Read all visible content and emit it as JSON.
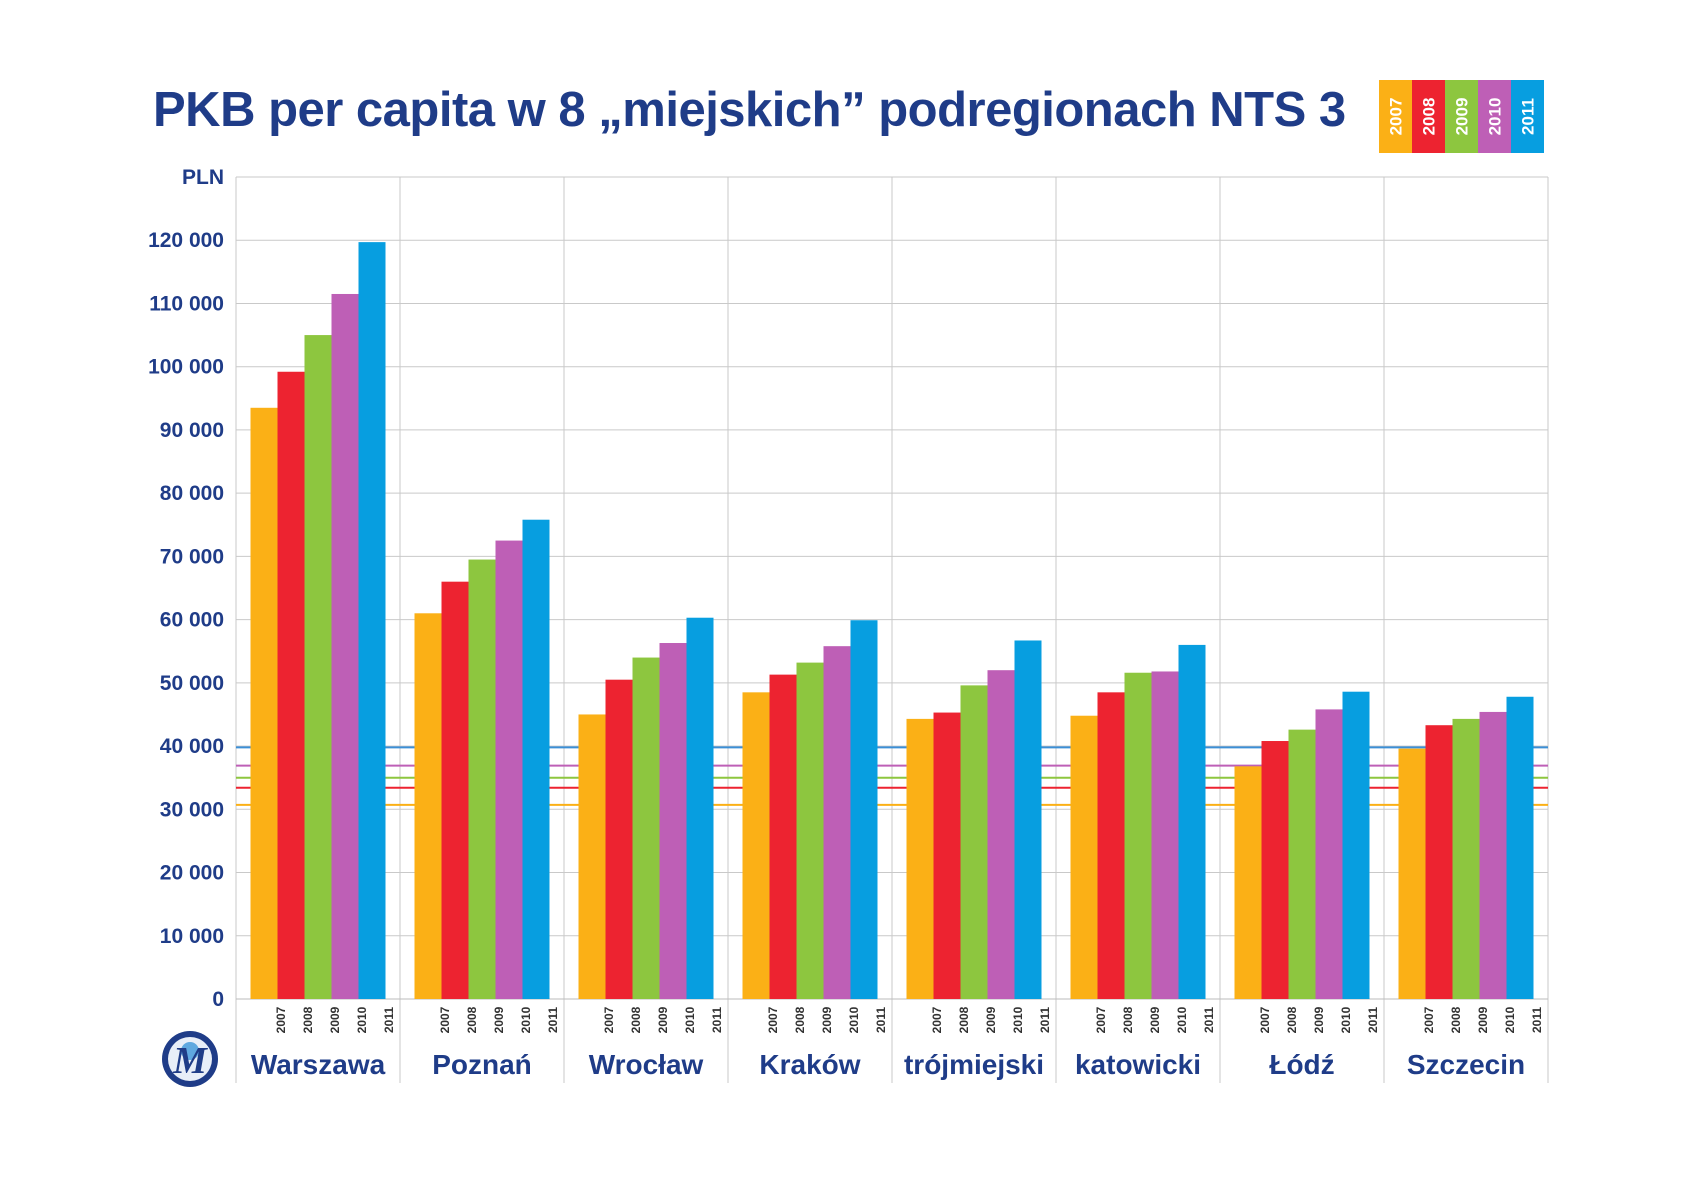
{
  "title": "PKB per capita w 8 „miejskich” podregionach NTS 3",
  "chart_data": {
    "type": "bar",
    "title": "PKB per capita w 8 „miejskich” podregionach NTS 3",
    "ylabel": "PLN",
    "xlabel": "",
    "ylim": [
      0,
      130000
    ],
    "yticks": [
      "0",
      "10 000",
      "20 000",
      "30 000",
      "40 000",
      "50 000",
      "60 000",
      "70 000",
      "80 000",
      "90 000",
      "100 000",
      "110 000",
      "120 000"
    ],
    "categories": [
      "Warszawa",
      "Poznań",
      "Wrocław",
      "Kraków",
      "trójmiejski",
      "katowicki",
      "Łódź",
      "Szczecin"
    ],
    "legend_position": "top-right",
    "grid": true,
    "series": [
      {
        "name": "2007",
        "color": "#fbb016",
        "values": [
          93500,
          61000,
          45000,
          48500,
          44300,
          44800,
          36800,
          39600
        ]
      },
      {
        "name": "2008",
        "color": "#ed2330",
        "values": [
          99200,
          66000,
          50500,
          51300,
          45300,
          48500,
          40800,
          43300
        ]
      },
      {
        "name": "2009",
        "color": "#8dc63f",
        "values": [
          105000,
          69500,
          54000,
          53200,
          49600,
          51600,
          42600,
          44300
        ]
      },
      {
        "name": "2010",
        "color": "#be5fb6",
        "values": [
          111500,
          72500,
          56300,
          55800,
          52000,
          51800,
          45800,
          45400
        ]
      },
      {
        "name": "2011",
        "color": "#079ee0",
        "values": [
          119700,
          75800,
          60300,
          59900,
          56700,
          56000,
          48600,
          47800
        ]
      }
    ],
    "reference_lines": [
      {
        "series": "2007",
        "color": "#fbb016",
        "value": 30700
      },
      {
        "series": "2008",
        "color": "#ed2330",
        "value": 33400
      },
      {
        "series": "2009",
        "color": "#8dc63f",
        "value": 35000
      },
      {
        "series": "2010",
        "color": "#be5fb6",
        "value": 36900
      },
      {
        "series": "2011",
        "color": "#3b8fd6",
        "value": 39800
      }
    ]
  },
  "logo": {
    "name": "metropolis-logo",
    "text": "M"
  }
}
